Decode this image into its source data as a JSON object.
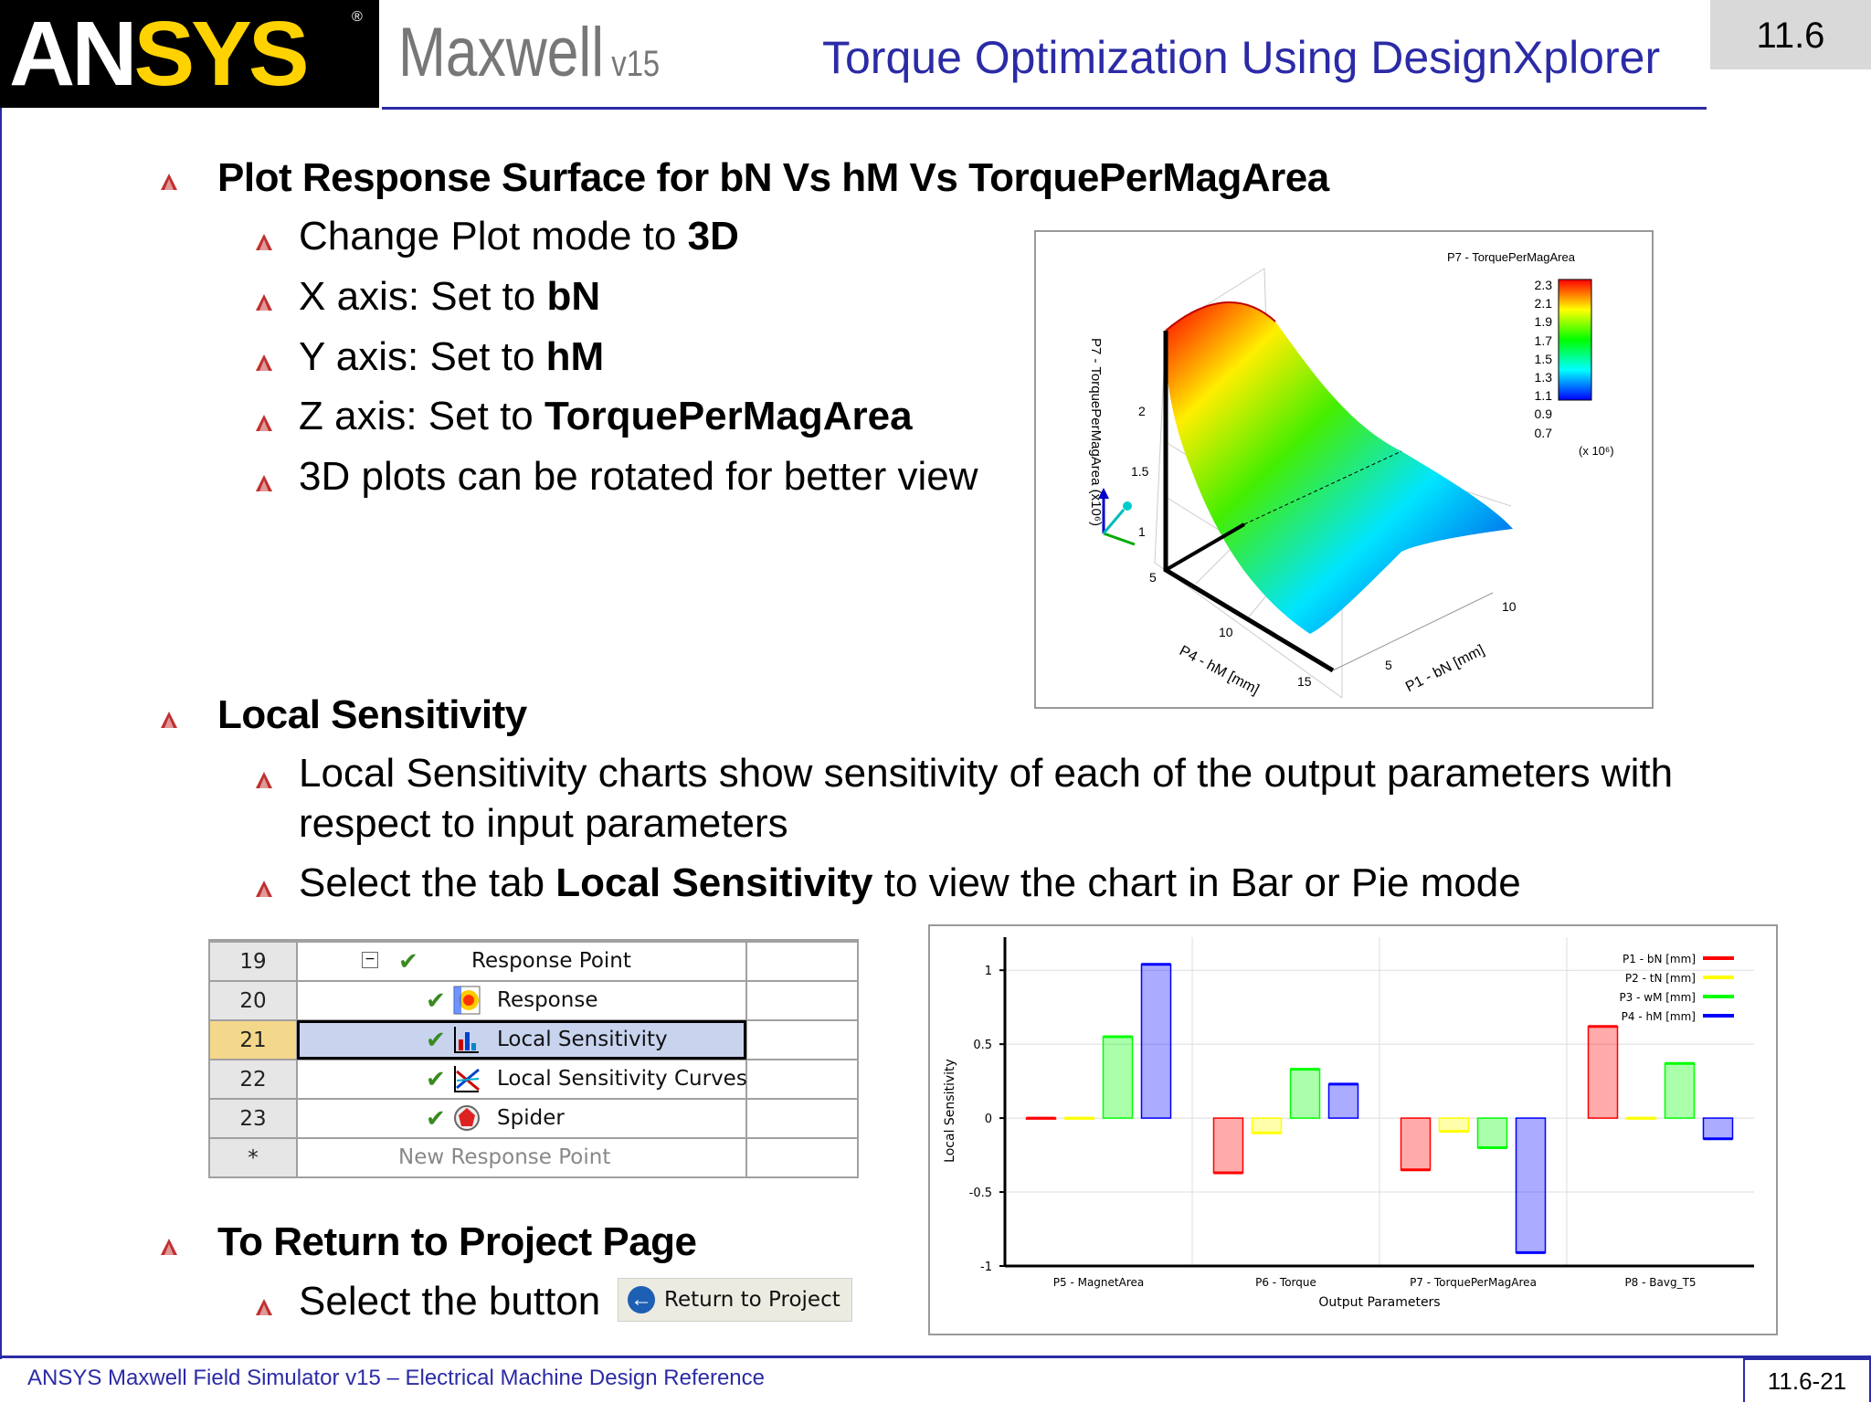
{
  "header": {
    "logo_text": "ANSYS",
    "product_name": "Maxwell",
    "product_version": "v15",
    "slide_title": "Torque Optimization Using DesignXplorer",
    "section_number": "11.6"
  },
  "section1": {
    "heading": "Plot Response Surface for bN Vs hM Vs TorquePerMagArea",
    "items": [
      {
        "text": "Change Plot mode to ",
        "bold": "3D"
      },
      {
        "text": "X axis: Set to ",
        "bold": "bN"
      },
      {
        "text": "Y axis: Set to ",
        "bold": "hM"
      },
      {
        "text": "Z axis: Set to ",
        "bold": "TorquePerMagArea"
      },
      {
        "text": "3D plots can be rotated for better view",
        "bold": ""
      }
    ]
  },
  "surface_plot": {
    "legend_title": "P7 - TorquePerMagArea",
    "legend_ticks": [
      "2.3",
      "2.1",
      "1.9",
      "1.7",
      "1.5",
      "1.3",
      "1.1",
      "0.9",
      "0.7"
    ],
    "legend_scale": "(x 10⁶)",
    "z_label": "P7 - TorquePerMagArea  (x10⁶)",
    "z_ticks": [
      "2",
      "1.5",
      "1"
    ],
    "y_label": "P4 - hM [mm]",
    "y_ticks": [
      "5",
      "10",
      "15"
    ],
    "x_label": "P1 - bN [mm]",
    "x_ticks": [
      "5",
      "10"
    ],
    "colors": [
      "#ff0000",
      "#ffff00",
      "#00ff00",
      "#00ffff",
      "#0000ff"
    ]
  },
  "section2": {
    "heading": "Local Sensitivity",
    "item1": "Local Sensitivity charts show sensitivity of each of the output parameters with",
    "item1_cont": "respect to input parameters",
    "item2_pre": "Select the tab ",
    "item2_bold": "Local Sensitivity",
    "item2_post": " to view the chart in Bar or Pie mode"
  },
  "tree_table": {
    "rows": [
      {
        "num": "19",
        "label": "Response Point",
        "icon": "collapse-check",
        "selected": false
      },
      {
        "num": "20",
        "label": "Response",
        "icon": "response-icon",
        "selected": false
      },
      {
        "num": "21",
        "label": "Local Sensitivity",
        "icon": "local-sensitivity-icon",
        "selected": true
      },
      {
        "num": "22",
        "label": "Local Sensitivity Curves",
        "icon": "sensitivity-curves-icon",
        "selected": false
      },
      {
        "num": "23",
        "label": "Spider",
        "icon": "spider-icon",
        "selected": false
      },
      {
        "num": "*",
        "label": "New Response Point",
        "icon": "",
        "selected": false
      }
    ]
  },
  "section3": {
    "heading": "To Return to Project Page",
    "item1": "Select the button",
    "button_label": "Return to Project"
  },
  "chart_data": {
    "type": "bar",
    "categories": [
      "P5 - MagnetArea",
      "P6 - Torque",
      "P7 - TorquePerMagArea",
      "P8 - Bavg_T5"
    ],
    "series": [
      {
        "name": "P1 - bN [mm]",
        "color": "#ff0000",
        "values": [
          0.0,
          -0.37,
          -0.35,
          0.62
        ]
      },
      {
        "name": "P2 - tN [mm]",
        "color": "#ffff00",
        "values": [
          0.0,
          -0.1,
          -0.09,
          0.0
        ]
      },
      {
        "name": "P3 - wM [mm]",
        "color": "#00ff00",
        "values": [
          0.55,
          0.33,
          -0.2,
          0.37
        ]
      },
      {
        "name": "P4 - hM [mm]",
        "color": "#0000ff",
        "values": [
          1.04,
          0.23,
          -0.91,
          -0.14
        ]
      }
    ],
    "xlabel": "Output Parameters",
    "ylabel": "Local Sensitivity",
    "ylim": [
      -1,
      1.1
    ],
    "yticks": [
      "1",
      "0.5",
      "0",
      "-0.5",
      "-1"
    ],
    "grid": true,
    "legend": "top-right"
  },
  "footer": {
    "text": "ANSYS Maxwell Field Simulator v15 – Electrical Machine Design Reference",
    "page": "11.6-21"
  }
}
